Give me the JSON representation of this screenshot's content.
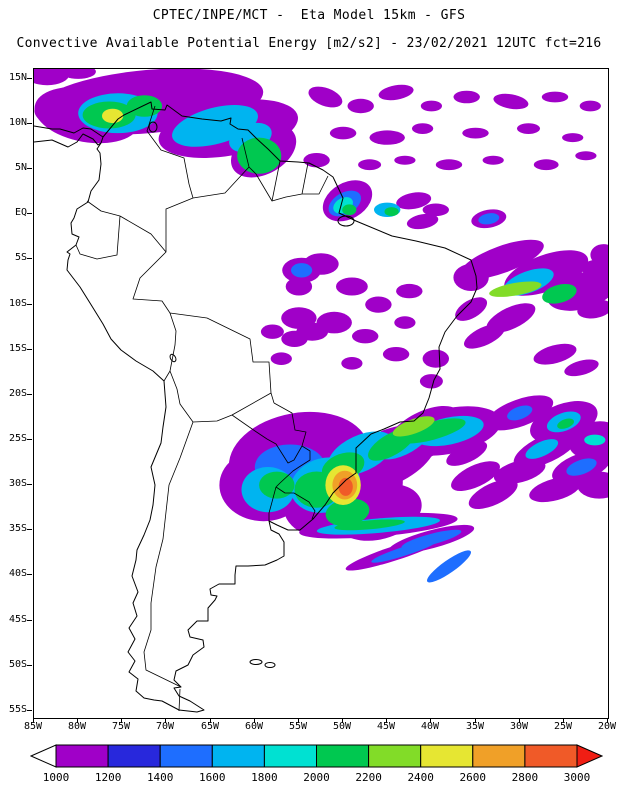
{
  "header": {
    "title_line1": "CPTEC/INPE/MCT -  Eta Model 15km - GFS",
    "title_line2": "Convective Available Potential Energy [m2/s2] - 23/02/2021 12UTC fct=216"
  },
  "chart_data": {
    "type": "heatmap",
    "title": "Convective Available Potential Energy",
    "units": "m2/s2",
    "model": "Eta Model 15km - GFS",
    "source": "CPTEC/INPE/MCT",
    "valid": "23/02/2021 12UTC",
    "forecast_hour": "fct=216",
    "lon_range": [
      -85,
      -20
    ],
    "lat_range": [
      -55.8,
      16.1
    ],
    "lat_ticks": [
      {
        "label": "15N",
        "value": 15
      },
      {
        "label": "10N",
        "value": 10
      },
      {
        "label": "5N",
        "value": 5
      },
      {
        "label": "EQ",
        "value": 0
      },
      {
        "label": "5S",
        "value": -5
      },
      {
        "label": "10S",
        "value": -10
      },
      {
        "label": "15S",
        "value": -15
      },
      {
        "label": "20S",
        "value": -20
      },
      {
        "label": "25S",
        "value": -25
      },
      {
        "label": "30S",
        "value": -30
      },
      {
        "label": "35S",
        "value": -35
      },
      {
        "label": "40S",
        "value": -40
      },
      {
        "label": "45S",
        "value": -45
      },
      {
        "label": "50S",
        "value": -50
      },
      {
        "label": "55S",
        "value": -55
      }
    ],
    "lon_ticks": [
      {
        "label": "85W",
        "value": -85
      },
      {
        "label": "80W",
        "value": -80
      },
      {
        "label": "75W",
        "value": -75
      },
      {
        "label": "70W",
        "value": -70
      },
      {
        "label": "65W",
        "value": -65
      },
      {
        "label": "60W",
        "value": -60
      },
      {
        "label": "55W",
        "value": -55
      },
      {
        "label": "50W",
        "value": -50
      },
      {
        "label": "45W",
        "value": -45
      },
      {
        "label": "40W",
        "value": -40
      },
      {
        "label": "35W",
        "value": -35
      },
      {
        "label": "30W",
        "value": -30
      },
      {
        "label": "25W",
        "value": -25
      },
      {
        "label": "20W",
        "value": -20
      }
    ],
    "colorbar": {
      "values": [
        1000,
        1200,
        1400,
        1600,
        1800,
        2000,
        2200,
        2400,
        2600,
        2800,
        3000
      ],
      "colors": [
        "#a000c8",
        "#2828dc",
        "#1e6eff",
        "#00b4f0",
        "#00e1d2",
        "#00c850",
        "#82dc28",
        "#e6e632",
        "#f0a028",
        "#f05a28"
      ],
      "below_color": "#ffffff",
      "above_color": "#f01e14"
    },
    "cape_blobs": [
      [
        -83.5,
        15.5,
        2.5,
        1.2,
        0,
        0
      ],
      [
        -80,
        15.8,
        2,
        0.8,
        0,
        0
      ],
      [
        -72,
        12.5,
        13,
        3.5,
        -5,
        0
      ],
      [
        -79,
        11,
        6,
        3,
        10,
        0
      ],
      [
        -63,
        9.5,
        8,
        3,
        -10,
        0
      ],
      [
        -59,
        7,
        4,
        2.5,
        -30,
        0
      ],
      [
        -68.5,
        14,
        4,
        1.5,
        0,
        0
      ],
      [
        -75.5,
        11.2,
        4.5,
        2.2,
        0,
        3
      ],
      [
        -64.5,
        9.8,
        5,
        2,
        -15,
        3
      ],
      [
        -60.5,
        8.5,
        2.5,
        1.5,
        -20,
        3
      ],
      [
        -76.5,
        11,
        3,
        1.5,
        0,
        5
      ],
      [
        -72.5,
        12,
        2,
        1.2,
        0,
        5
      ],
      [
        -59.5,
        6.5,
        2.5,
        2,
        0,
        5
      ],
      [
        -76.1,
        10.9,
        1.2,
        0.8,
        0,
        7
      ],
      [
        -52,
        13,
        2,
        1,
        20,
        0
      ],
      [
        -48,
        12,
        1.5,
        0.8,
        0,
        0
      ],
      [
        -44,
        13.5,
        2,
        0.8,
        -10,
        0
      ],
      [
        -40,
        12,
        1.2,
        0.6,
        0,
        0
      ],
      [
        -36,
        13,
        1.5,
        0.7,
        0,
        0
      ],
      [
        -31,
        12.5,
        2,
        0.8,
        10,
        0
      ],
      [
        -26,
        13,
        1.5,
        0.6,
        0,
        0
      ],
      [
        -22,
        12,
        1.2,
        0.6,
        0,
        0
      ],
      [
        -50,
        9,
        1.5,
        0.7,
        0,
        0
      ],
      [
        -45,
        8.5,
        2,
        0.8,
        0,
        0
      ],
      [
        -41,
        9.5,
        1.2,
        0.6,
        0,
        0
      ],
      [
        -35,
        9,
        1.5,
        0.6,
        0,
        0
      ],
      [
        -29,
        9.5,
        1.3,
        0.6,
        0,
        0
      ],
      [
        -24,
        8.5,
        1.2,
        0.5,
        0,
        0
      ],
      [
        -53,
        6,
        1.5,
        0.8,
        0,
        0
      ],
      [
        -47,
        5.5,
        1.3,
        0.6,
        0,
        0
      ],
      [
        -43,
        6,
        1.2,
        0.5,
        0,
        0
      ],
      [
        -38,
        5.5,
        1.5,
        0.6,
        0,
        0
      ],
      [
        -33,
        6,
        1.2,
        0.5,
        0,
        0
      ],
      [
        -27,
        5.5,
        1.4,
        0.6,
        0,
        0
      ],
      [
        -22.5,
        6.5,
        1.2,
        0.5,
        0,
        0
      ],
      [
        -42,
        1.5,
        2,
        0.9,
        -10,
        0
      ],
      [
        -39.5,
        0.5,
        1.5,
        0.7,
        0,
        0
      ],
      [
        -41,
        -0.8,
        1.8,
        0.8,
        -10,
        0
      ],
      [
        -33.5,
        -0.5,
        2,
        1,
        -10,
        0
      ],
      [
        -33.5,
        -0.5,
        1.2,
        0.6,
        -10,
        2
      ],
      [
        -45,
        0.5,
        1.5,
        0.8,
        0,
        3
      ],
      [
        -44.5,
        0.3,
        0.8,
        0.5,
        0,
        5
      ],
      [
        -49.5,
        1.5,
        3,
        2,
        -30,
        0
      ],
      [
        -49.8,
        1.2,
        2,
        1.2,
        -30,
        2
      ],
      [
        -50,
        1,
        1.2,
        0.8,
        -30,
        4
      ],
      [
        -49.3,
        0.5,
        0.8,
        0.6,
        0,
        5
      ],
      [
        -35.5,
        -7,
        2,
        1.5,
        0,
        0
      ],
      [
        -32,
        -5,
        5,
        1.5,
        -20,
        0
      ],
      [
        -27,
        -6.5,
        5,
        2,
        -20,
        0
      ],
      [
        -23,
        -8.5,
        4,
        2,
        -15,
        0
      ],
      [
        -20.5,
        -4.5,
        1.5,
        1.2,
        0,
        0
      ],
      [
        -21,
        -6,
        2,
        1,
        0,
        0
      ],
      [
        -21.5,
        -10.5,
        2,
        1,
        -10,
        0
      ],
      [
        -29,
        -7.5,
        3,
        1.2,
        -20,
        3
      ],
      [
        -30.5,
        -8.3,
        3,
        0.7,
        -10,
        6
      ],
      [
        -25.5,
        -8.8,
        2,
        1,
        -15,
        5
      ],
      [
        -31,
        -11.5,
        3,
        1.2,
        -25,
        0
      ],
      [
        -34,
        -13.5,
        2.5,
        1,
        -25,
        0
      ],
      [
        -35.5,
        -10.5,
        2,
        1,
        -30,
        0
      ],
      [
        -26,
        -15.5,
        2.5,
        1,
        -15,
        0
      ],
      [
        -23,
        -17,
        2,
        0.8,
        -15,
        0
      ],
      [
        -54.7,
        -6.2,
        2.2,
        1.4,
        0,
        0
      ],
      [
        -54.7,
        -6.2,
        1.2,
        0.8,
        0,
        2
      ],
      [
        -52.5,
        -5.5,
        2,
        1.2,
        0,
        0
      ],
      [
        -55,
        -8,
        1.5,
        1,
        0,
        0
      ],
      [
        -49,
        -8,
        1.8,
        1,
        0,
        0
      ],
      [
        -46,
        -10,
        1.5,
        0.9,
        0,
        0
      ],
      [
        -51,
        -12,
        2,
        1.2,
        0,
        0
      ],
      [
        -47.5,
        -13.5,
        1.5,
        0.8,
        0,
        0
      ],
      [
        -55,
        -11.5,
        2,
        1.2,
        0,
        0
      ],
      [
        -53.5,
        -13,
        1.8,
        1,
        0,
        0
      ],
      [
        -55.5,
        -13.8,
        1.5,
        0.9,
        0,
        0
      ],
      [
        -44,
        -15.5,
        1.5,
        0.8,
        0,
        0
      ],
      [
        -49,
        -16.5,
        1.2,
        0.7,
        0,
        0
      ],
      [
        -58,
        -13,
        1.3,
        0.8,
        0,
        0
      ],
      [
        -57,
        -16,
        1.2,
        0.7,
        0,
        0
      ],
      [
        -43,
        -12,
        1.2,
        0.7,
        0,
        0
      ],
      [
        -42.5,
        -8.5,
        1.5,
        0.8,
        0,
        0
      ],
      [
        -39.5,
        -16,
        1.5,
        1,
        0,
        0
      ],
      [
        -40,
        -18.5,
        1.3,
        0.8,
        0,
        0
      ],
      [
        -55,
        -27,
        8,
        5,
        -10,
        0
      ],
      [
        -59,
        -30,
        5,
        4,
        0,
        0
      ],
      [
        -50,
        -31,
        7,
        4.5,
        -20,
        0
      ],
      [
        -45,
        -27,
        6,
        3,
        -25,
        0
      ],
      [
        -41,
        -24.5,
        5,
        2.5,
        -30,
        0
      ],
      [
        -46,
        -33,
        5,
        3,
        -15,
        0
      ],
      [
        -38,
        -24,
        6,
        2.5,
        -12,
        0
      ],
      [
        -56,
        -28,
        4,
        2.5,
        0,
        2
      ],
      [
        -58.5,
        -30.5,
        3,
        2.5,
        0,
        3
      ],
      [
        -52,
        -30,
        4,
        3,
        -15,
        3
      ],
      [
        -48,
        -26.5,
        4,
        2,
        -25,
        3
      ],
      [
        -43,
        -25,
        3.5,
        1.5,
        -30,
        3
      ],
      [
        -38,
        -24,
        4,
        1.5,
        -12,
        3
      ],
      [
        -57.5,
        -30,
        2,
        1.5,
        0,
        5
      ],
      [
        -53,
        -30.5,
        2.5,
        2,
        0,
        5
      ],
      [
        -50,
        -28,
        2.5,
        1.5,
        -20,
        5
      ],
      [
        -44.5,
        -25.5,
        3,
        1.2,
        -30,
        5
      ],
      [
        -40,
        -24,
        4,
        1,
        -15,
        5
      ],
      [
        -49.5,
        -33,
        2.5,
        1.5,
        -10,
        5
      ],
      [
        -42,
        -23.5,
        2.5,
        0.8,
        -20,
        6
      ],
      [
        -50,
        -30,
        2,
        2.2,
        0,
        7
      ],
      [
        -49.8,
        -30,
        1.4,
        1.6,
        0,
        8
      ],
      [
        -49.7,
        -30.2,
        0.8,
        1,
        0,
        9
      ],
      [
        -46,
        -34.5,
        9,
        1.2,
        -5,
        0
      ],
      [
        -46,
        -34.5,
        7,
        0.8,
        -5,
        3
      ],
      [
        -47,
        -34.4,
        4,
        0.5,
        -5,
        5
      ],
      [
        -40,
        -36,
        5,
        1,
        -15,
        0
      ],
      [
        -40,
        -36,
        3.5,
        0.6,
        -15,
        2
      ],
      [
        -44,
        -37.5,
        6,
        0.8,
        -18,
        0
      ],
      [
        -43,
        -37.3,
        4,
        0.5,
        -18,
        2
      ],
      [
        -38,
        -39,
        3,
        0.7,
        -35,
        2
      ],
      [
        -35,
        -29,
        3,
        1.2,
        -25,
        0
      ],
      [
        -33,
        -31,
        3,
        1.2,
        -25,
        0
      ],
      [
        -36,
        -26.5,
        2.5,
        1,
        -25,
        0
      ],
      [
        -30,
        -22,
        4,
        1.5,
        -20,
        0
      ],
      [
        -25,
        -23,
        4,
        2,
        -20,
        0
      ],
      [
        -21.5,
        -25,
        3,
        2,
        -15,
        0
      ],
      [
        -27,
        -26,
        4,
        1.5,
        -25,
        0
      ],
      [
        -23,
        -28,
        3.5,
        1.5,
        -20,
        0
      ],
      [
        -30,
        -28.5,
        3,
        1.2,
        -15,
        0
      ],
      [
        -26,
        -30.5,
        3,
        1.2,
        -15,
        0
      ],
      [
        -21,
        -30,
        2.5,
        1.5,
        0,
        0
      ],
      [
        -25,
        -23,
        2,
        1,
        -20,
        3
      ],
      [
        -27.5,
        -26,
        2,
        0.8,
        -25,
        3
      ],
      [
        -23,
        -28,
        1.8,
        0.8,
        -20,
        2
      ],
      [
        -30,
        -22,
        1.5,
        0.7,
        -20,
        2
      ],
      [
        -24.8,
        -23.2,
        1,
        0.5,
        -20,
        5
      ],
      [
        -21.5,
        -25,
        1.2,
        0.6,
        0,
        4
      ]
    ]
  }
}
